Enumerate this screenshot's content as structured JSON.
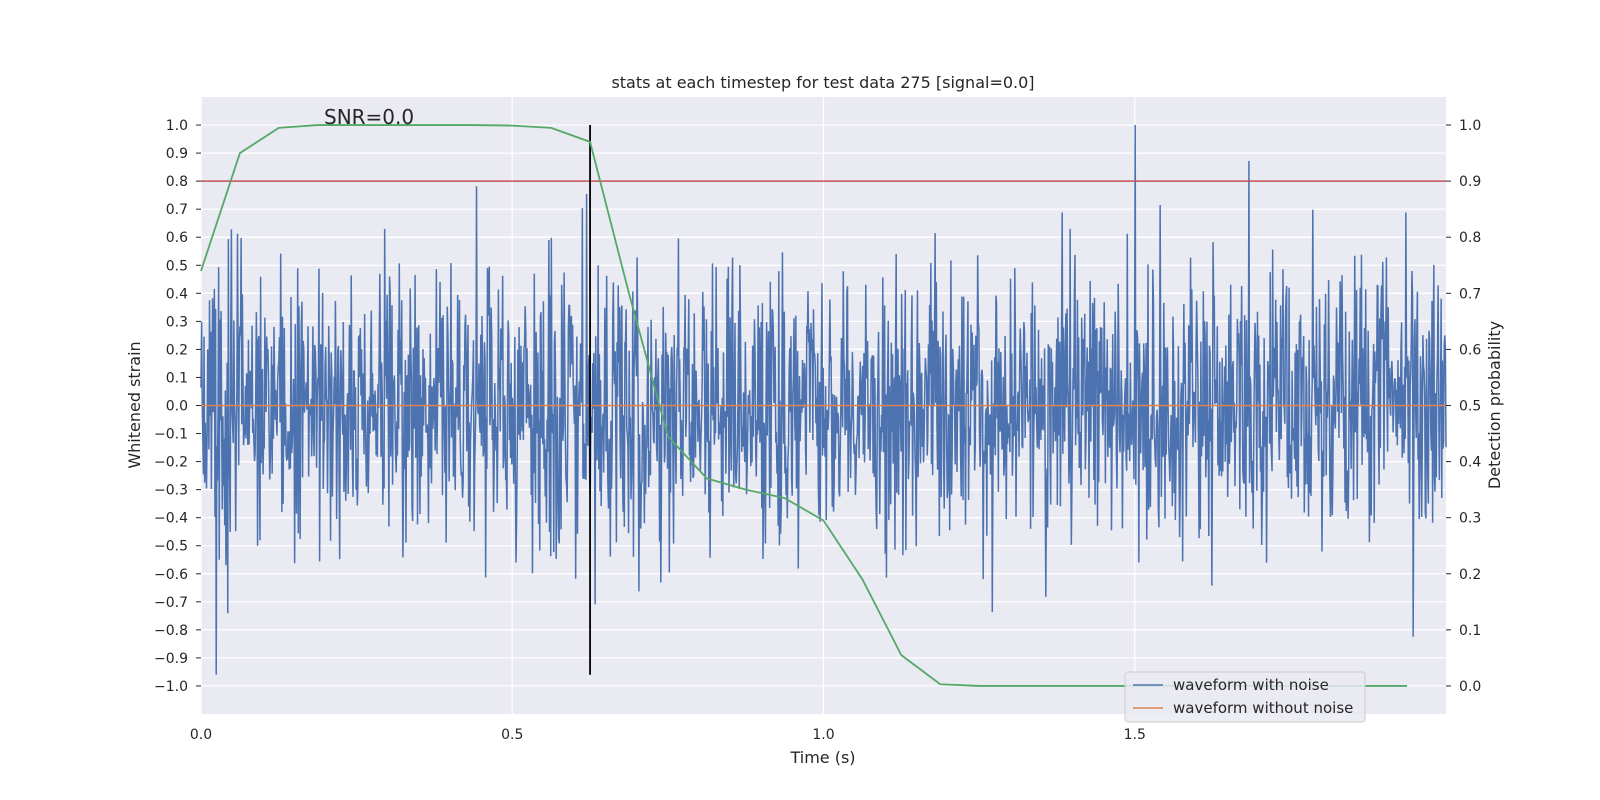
{
  "chart_data": {
    "type": "line",
    "title": "stats at each timestep for test data 275 [signal=0.0]",
    "xlabel": "Time (s)",
    "ylabel": "Whitened strain",
    "y2label": "Detection probability",
    "xlim": [
      0.0,
      2.0
    ],
    "ylim": [
      -1.1,
      1.1
    ],
    "y2lim": [
      -0.05,
      1.05
    ],
    "xticks": [
      0.0,
      0.5,
      1.0,
      1.5
    ],
    "xtick_labels": [
      "0.0",
      "0.5",
      "1.0",
      "1.5"
    ],
    "yticks": [
      -1.0,
      -0.9,
      -0.8,
      -0.7,
      -0.6,
      -0.5,
      -0.4,
      -0.3,
      -0.2,
      -0.1,
      0.0,
      0.1,
      0.2,
      0.3,
      0.4,
      0.5,
      0.6,
      0.7,
      0.8,
      0.9,
      1.0
    ],
    "ytick_labels": [
      "−1.0",
      "−0.9",
      "−0.8",
      "−0.7",
      "−0.6",
      "−0.5",
      "−0.4",
      "−0.3",
      "−0.2",
      "−0.1",
      "0.0",
      "0.1",
      "0.2",
      "0.3",
      "0.4",
      "0.5",
      "0.6",
      "0.7",
      "0.8",
      "0.9",
      "1.0"
    ],
    "y2ticks": [
      0.0,
      0.1,
      0.2,
      0.3,
      0.4,
      0.5,
      0.6,
      0.7,
      0.8,
      0.9,
      1.0
    ],
    "y2tick_labels": [
      "0.0",
      "0.1",
      "0.2",
      "0.3",
      "0.4",
      "0.5",
      "0.6",
      "0.7",
      "0.8",
      "0.9",
      "1.0"
    ],
    "annotation": "SNR=0.0",
    "series": [
      {
        "name": "waveform with noise",
        "color": "#4c72b0",
        "axis": "left",
        "kind": "noise",
        "x_range": [
          0.0,
          2.0
        ],
        "samples": 2048,
        "amplitude_std": 0.25,
        "max_value": 1.0,
        "min_value": -0.96,
        "seed": 275
      },
      {
        "name": "waveform without noise",
        "color": "#dd8452",
        "axis": "left",
        "x": [
          0.0,
          2.0
        ],
        "values": [
          0.0,
          0.0
        ]
      },
      {
        "name": "detection probability",
        "color": "#55a868",
        "axis": "right",
        "in_legend": false,
        "x": [
          0.0,
          0.0625,
          0.125,
          0.1875,
          0.25,
          0.3125,
          0.375,
          0.4375,
          0.5,
          0.5625,
          0.625,
          0.6875,
          0.75,
          0.8125,
          0.875,
          0.9375,
          1.0,
          1.0625,
          1.125,
          1.1875,
          1.25,
          1.3125,
          1.375,
          1.4375,
          1.5,
          1.5625,
          1.625,
          1.6875,
          1.75,
          1.8125,
          1.875,
          1.9375
        ],
        "values": [
          0.74,
          0.95,
          0.995,
          1.0,
          1.0,
          1.0,
          1.0,
          1.0,
          0.999,
          0.995,
          0.97,
          0.7,
          0.445,
          0.37,
          0.35,
          0.335,
          0.295,
          0.19,
          0.055,
          0.003,
          0.0,
          0.0,
          0.0,
          0.0,
          0.0,
          0.0,
          0.0,
          0.0,
          0.0,
          0.0,
          0.0,
          0.0
        ]
      }
    ],
    "threshold_line": {
      "axis": "left",
      "value": 0.8,
      "color": "#c44e52"
    },
    "marker_line": {
      "x": 0.625,
      "y_range": [
        -0.96,
        1.0
      ],
      "color": "#000000"
    },
    "legend_position": "lower right"
  }
}
